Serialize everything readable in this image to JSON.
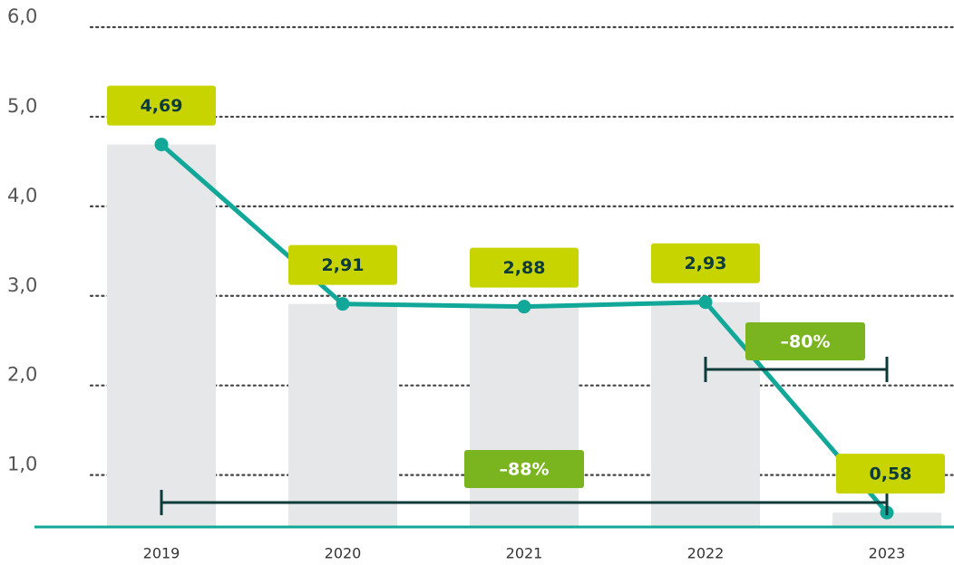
{
  "chart_data": {
    "type": "combo",
    "categories": [
      "2019",
      "2020",
      "2021",
      "2022",
      "2023"
    ],
    "values": [
      4.69,
      2.91,
      2.88,
      2.93,
      0.58
    ],
    "value_labels": [
      "4,69",
      "2,91",
      "2,88",
      "2,93",
      "0,58"
    ],
    "bar_color": "#e6e7e8",
    "line_color": "#12a899",
    "label_color": "#c8d400",
    "ylim": [
      0.42,
      6.0
    ],
    "yticks": [
      {
        "value": 1,
        "label": "1,0"
      },
      {
        "value": 2,
        "label": "2,0"
      },
      {
        "value": 3,
        "label": "3,0"
      },
      {
        "value": 4,
        "label": "4,0"
      },
      {
        "value": 5,
        "label": "5,0"
      },
      {
        "value": 6,
        "label": "6,0"
      }
    ],
    "grid": true,
    "annotations": [
      {
        "text": "–88%",
        "from": "2019",
        "to": "2023",
        "color": "#7ab41e"
      },
      {
        "text": "–80%",
        "from": "2022",
        "to": "2023",
        "color": "#7ab41e"
      }
    ]
  }
}
